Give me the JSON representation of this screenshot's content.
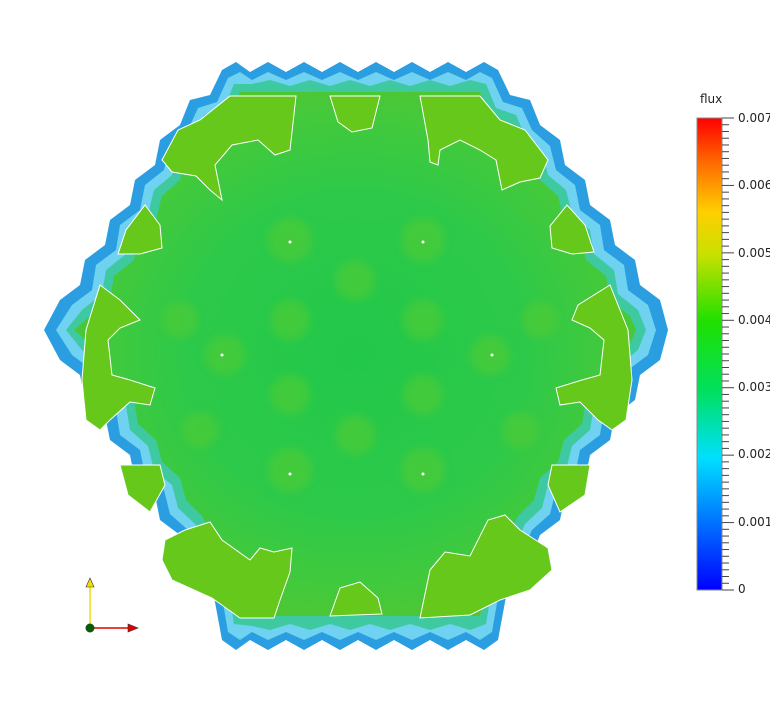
{
  "legend": {
    "title": "flux",
    "labels": [
      "0.007",
      "0.006",
      "0.005",
      "0.004",
      "0.003",
      "0.002",
      "0.001",
      "0"
    ],
    "colors": [
      "#0000ff",
      "#00c0ff",
      "#00ffd0",
      "#00e000",
      "#90e000",
      "#ffff00",
      "#ff9000",
      "#ff0000"
    ]
  },
  "field": {
    "outer_band_colors": [
      "#2a9ee0",
      "#6fd2f0",
      "#3fc9c9",
      "#52d05a"
    ],
    "fill_colors": [
      "#2fc94a",
      "#5cc71a",
      "#6dcb10"
    ]
  },
  "axes": {
    "y_color": "#f0e000",
    "x_color": "#e00000",
    "origin_color": "#0b5a0b"
  }
}
